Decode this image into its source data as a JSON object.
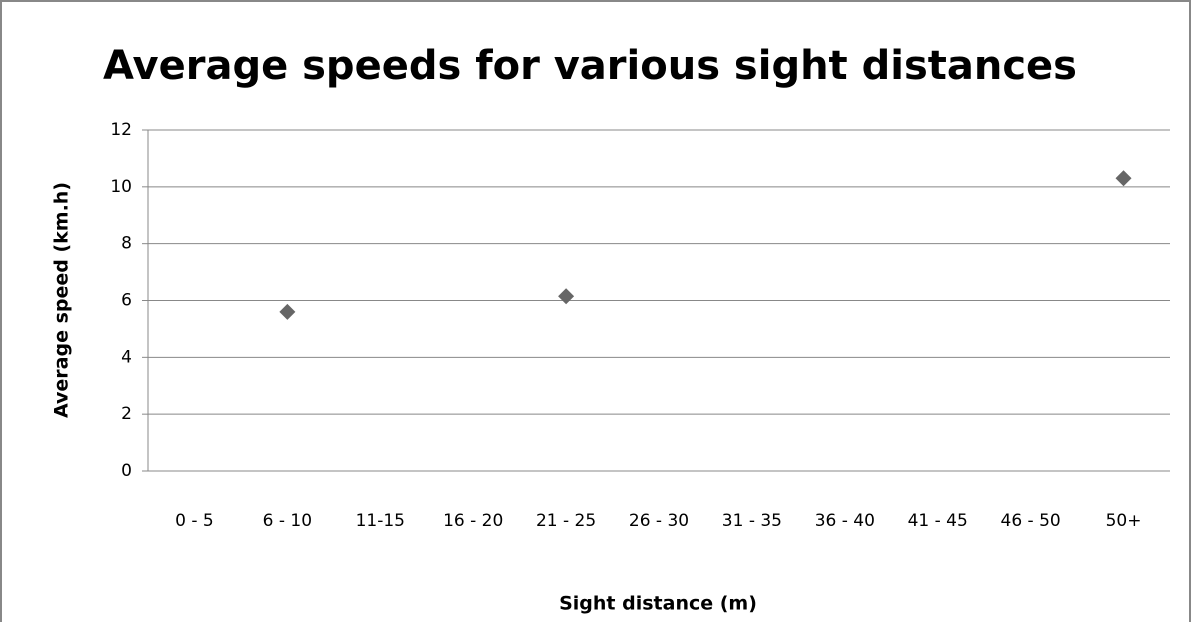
{
  "chart_data": {
    "type": "scatter",
    "title": "Average speeds for various sight distances",
    "x_label": "Sight distance (m)",
    "y_label": "Average speed (km.h)",
    "categories": [
      "0 - 5",
      "6 - 10",
      "11-15",
      "16 - 20",
      "21 - 25",
      "26 - 30",
      "31 - 35",
      "36 - 40",
      "41 - 45",
      "46 - 50",
      "50+"
    ],
    "values": [
      null,
      5.6,
      null,
      null,
      6.15,
      null,
      null,
      null,
      null,
      null,
      10.3
    ],
    "color": "#666666",
    "ylim": [
      0,
      12
    ],
    "yticks": [
      0,
      2,
      4,
      6,
      8,
      10,
      12
    ],
    "grid": true
  }
}
